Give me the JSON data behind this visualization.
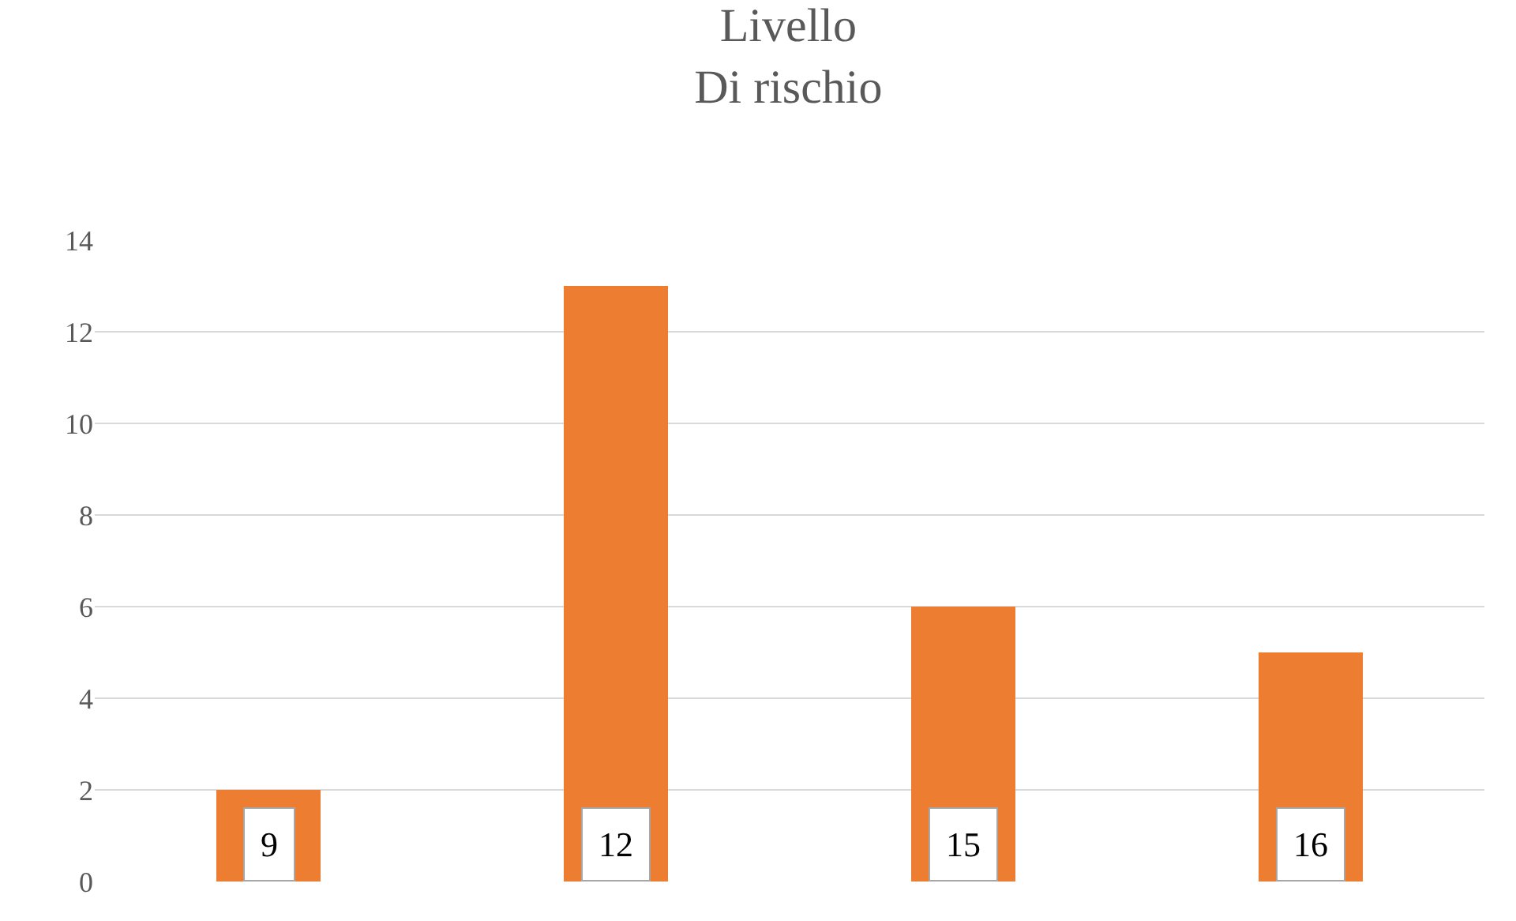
{
  "chart_data": {
    "type": "bar",
    "title": "Livello\nDi rischio",
    "categories": [
      "9",
      "12",
      "15",
      "16"
    ],
    "values": [
      2,
      13,
      6,
      5
    ],
    "color": "#ed7d31",
    "ylim": [
      0,
      14
    ],
    "yticks": [
      0,
      2,
      4,
      6,
      8,
      10,
      12,
      14
    ],
    "grid": "y",
    "legend": false
  }
}
